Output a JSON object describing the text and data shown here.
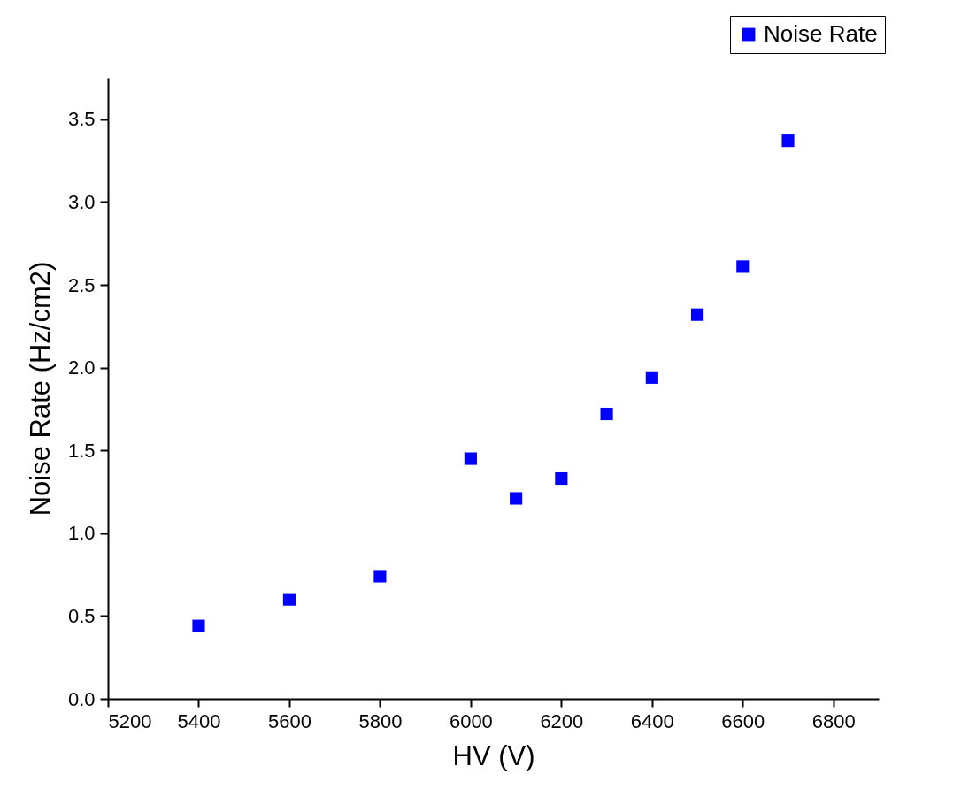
{
  "chart_data": {
    "type": "scatter",
    "xlabel": "HV (V)",
    "ylabel": "Noise Rate (Hz/cm2)",
    "x": [
      5400,
      5600,
      5800,
      6000,
      6100,
      6200,
      6300,
      6400,
      6500,
      6600,
      6700
    ],
    "series": [
      {
        "name": "Noise Rate",
        "color": "#0000ff",
        "values": [
          0.44,
          0.6,
          0.74,
          1.45,
          1.21,
          1.33,
          1.72,
          1.94,
          2.32,
          2.61,
          3.37
        ]
      }
    ],
    "xlim": [
      5200,
      6900
    ],
    "xticks": [
      5200,
      5400,
      5600,
      5800,
      6000,
      6200,
      6400,
      6600,
      6800
    ],
    "ylim": [
      0,
      3.75
    ],
    "yticks": [
      {
        "value": 0,
        "label": "0.0"
      },
      0.5,
      {
        "value": 1,
        "label": "1.0"
      },
      1.5,
      {
        "value": 2,
        "label": "2.0"
      },
      2.5,
      {
        "value": 3,
        "label": "3.0"
      },
      3.5
    ],
    "grid": false,
    "legend": "top right",
    "marker": "square"
  }
}
